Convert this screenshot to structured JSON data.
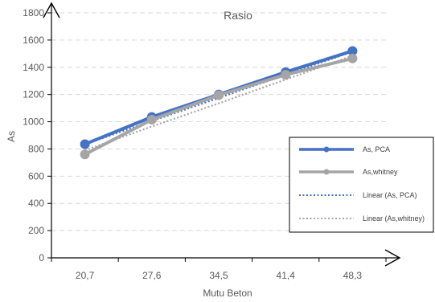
{
  "chart_data": {
    "type": "line",
    "title": "Rasio",
    "xlabel": "Mutu Beton",
    "ylabel": "As",
    "categories": [
      "20,7",
      "27,6",
      "34,5",
      "41,4",
      "48,3"
    ],
    "ylim": [
      0,
      1800
    ],
    "yticks": [
      0,
      200,
      400,
      600,
      800,
      1000,
      1200,
      1400,
      1600,
      1800
    ],
    "grid": true,
    "legend_position": "right",
    "series": [
      {
        "name": "As, PCA",
        "values": [
          835,
          1035,
          1200,
          1365,
          1520
        ],
        "color": "#4472C4",
        "style": "line-marker"
      },
      {
        "name": "As,whitney",
        "values": [
          760,
          1015,
          1195,
          1345,
          1465
        ],
        "color": "#A5A5A5",
        "style": "line-marker"
      },
      {
        "name": "Linear (As, PCA)",
        "values": [
          835,
          1005,
          1175,
          1345,
          1515
        ],
        "color": "#4472C4",
        "style": "dotted"
      },
      {
        "name": "Linear (As,whitney)",
        "values": [
          790,
          965,
          1135,
          1310,
          1485
        ],
        "color": "#A5A5A5",
        "style": "dotted"
      }
    ]
  }
}
